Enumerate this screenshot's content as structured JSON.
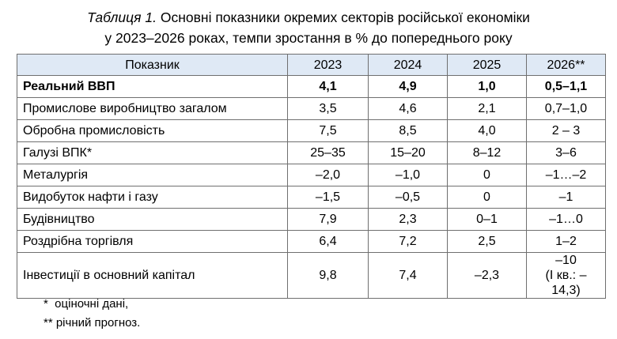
{
  "title": {
    "label": "Таблиця 1.",
    "line1": "Основні показники окремих секторів російської економіки",
    "line2": "у 2023–2026 роках, темпи зростання в % до попереднього року"
  },
  "table": {
    "headers": [
      "Показник",
      "2023",
      "2024",
      "2025",
      "2026**"
    ],
    "rows": [
      {
        "name": "Реальний ВВП",
        "values": [
          "4,1",
          "4,9",
          "1,0",
          "0,5–1,1"
        ]
      },
      {
        "name": "Промислове виробництво загалом",
        "values": [
          "3,5",
          "4,6",
          "2,1",
          "0,7–1,0"
        ]
      },
      {
        "name": "Обробна промисловість",
        "values": [
          "7,5",
          "8,5",
          "4,0",
          "2 – 3"
        ]
      },
      {
        "name": "Галузі ВПК*",
        "values": [
          "25–35",
          "15–20",
          "8–12",
          "3–6"
        ]
      },
      {
        "name": "Металургія",
        "values": [
          "–2,0",
          "–1,0",
          "0",
          "–1…–2"
        ]
      },
      {
        "name": "Видобуток нафти і газу",
        "values": [
          "–1,5",
          "–0,5",
          "0",
          "–1"
        ]
      },
      {
        "name": "Будівництво",
        "values": [
          "7,9",
          "2,3",
          "0–1",
          "–1…0"
        ]
      },
      {
        "name": "Роздрібна торгівля",
        "values": [
          "6,4",
          "7,2",
          "2,5",
          "1–2"
        ]
      },
      {
        "name": "Інвестиції в основний капітал",
        "values": [
          "9,8",
          "7,4",
          "–2,3",
          "–10"
        ],
        "extra": "(І кв.: –14,3)"
      }
    ]
  },
  "notes": {
    "n1": "*  оціночні дані,",
    "n2": "** річний прогноз."
  }
}
